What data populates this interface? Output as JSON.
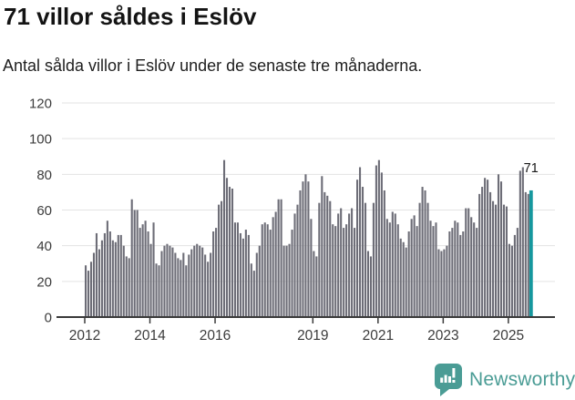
{
  "header": {
    "title": "71 villor såldes i Eslöv",
    "subtitle": "Antal sålda villor i Eslöv under de senaste tre månaderna."
  },
  "chart_data": {
    "type": "bar",
    "title": "71 villor såldes i Eslöv",
    "subtitle": "Antal sålda villor i Eslöv under de senaste tre månaderna.",
    "frequency": "monthly",
    "x_start": "2012-01",
    "x_end": "2025-09",
    "xlabel": "",
    "ylabel": "",
    "ylim": [
      0,
      120
    ],
    "yticks": [
      0,
      20,
      40,
      60,
      80,
      100,
      120
    ],
    "grid": true,
    "legend": false,
    "bar_color": "#6d6d77",
    "gridline_color": "#e3e3e3",
    "axis_color": "#3a3a3a",
    "tick_label_color": "#3c3c3c",
    "xticks": [
      {
        "label": "2012",
        "month_index": 0
      },
      {
        "label": "2014",
        "month_index": 24
      },
      {
        "label": "2016",
        "month_index": 48
      },
      {
        "label": "2019",
        "month_index": 84
      },
      {
        "label": "2021",
        "month_index": 108
      },
      {
        "label": "2023",
        "month_index": 132
      },
      {
        "label": "2025",
        "month_index": 156
      }
    ],
    "values": [
      29,
      26,
      31,
      36,
      47,
      38,
      43,
      47,
      54,
      48,
      43,
      42,
      46,
      46,
      40,
      34,
      33,
      66,
      60,
      60,
      50,
      52,
      54,
      48,
      41,
      53,
      30,
      29,
      37,
      40,
      41,
      40,
      39,
      36,
      33,
      32,
      36,
      29,
      35,
      38,
      40,
      41,
      40,
      39,
      35,
      31,
      36,
      48,
      50,
      63,
      65,
      88,
      78,
      73,
      72,
      53,
      53,
      47,
      44,
      49,
      46,
      30,
      26,
      36,
      40,
      52,
      53,
      52,
      49,
      56,
      59,
      66,
      66,
      40,
      40,
      41,
      49,
      58,
      63,
      71,
      76,
      80,
      76,
      55,
      37,
      34,
      64,
      79,
      70,
      68,
      65,
      52,
      51,
      58,
      61,
      50,
      52,
      58,
      61,
      50,
      77,
      84,
      73,
      64,
      37,
      34,
      64,
      85,
      88,
      81,
      71,
      55,
      53,
      59,
      58,
      52,
      44,
      42,
      39,
      48,
      55,
      57,
      51,
      64,
      73,
      71,
      64,
      54,
      51,
      53,
      38,
      37,
      38,
      40,
      48,
      50,
      54,
      53,
      46,
      48,
      61,
      61,
      56,
      53,
      50,
      69,
      73,
      78,
      77,
      70,
      65,
      63,
      80,
      76,
      63,
      62,
      41,
      40,
      46,
      50,
      82,
      84,
      70,
      69,
      71
    ],
    "highlight": {
      "index": 164,
      "value": 71,
      "label": "71",
      "color": "#16989e",
      "label_color": "#191919"
    }
  },
  "footer": {
    "brand": "Newsworthy",
    "brand_color": "#4a9c95",
    "logo_icon": "bar-chart-speech-bubble"
  }
}
